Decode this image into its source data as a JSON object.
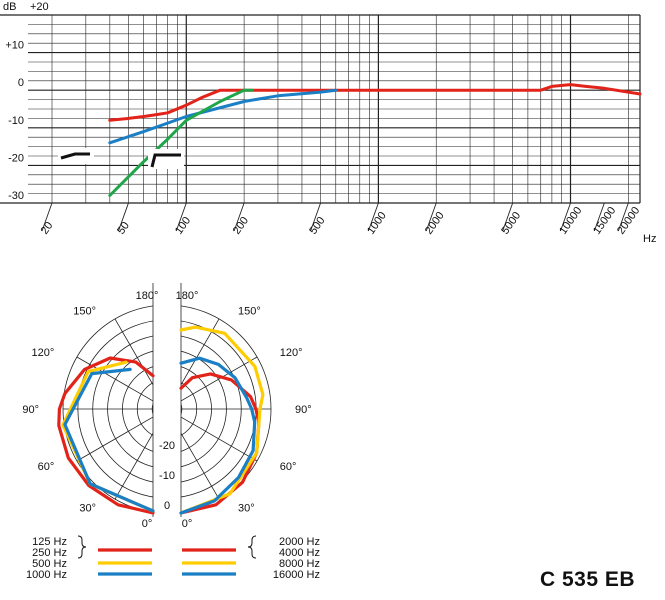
{
  "model_name": "C 535 EB",
  "colors": {
    "red": "#e2231a",
    "yellow": "#ffcc00",
    "blue": "#1a7fc4",
    "green": "#1fa64a",
    "grid": "#222222"
  },
  "chart_data": [
    {
      "type": "line",
      "title": "",
      "ylabel": "dB",
      "xlabel": "Hz",
      "x_scale": "log",
      "xlim": [
        15,
        23000
      ],
      "ylim": [
        -30,
        20
      ],
      "y_ticks": [
        {
          "value": 20,
          "label": "+20"
        },
        {
          "value": 10,
          "label": "+10"
        },
        {
          "value": 0,
          "label": "0"
        },
        {
          "value": -10,
          "label": "-10"
        },
        {
          "value": -20,
          "label": "-20"
        },
        {
          "value": -30,
          "label": "-30"
        }
      ],
      "x_ticks": [
        {
          "value": 20,
          "label": "20"
        },
        {
          "value": 50,
          "label": "50"
        },
        {
          "value": 100,
          "label": "100"
        },
        {
          "value": 200,
          "label": "200"
        },
        {
          "value": 500,
          "label": "500"
        },
        {
          "value": 1000,
          "label": "1000"
        },
        {
          "value": 2000,
          "label": "2000"
        },
        {
          "value": 5000,
          "label": "5000"
        },
        {
          "value": 10000,
          "label": "10000"
        },
        {
          "value": 15000,
          "label": "15000"
        },
        {
          "value": 20000,
          "label": "20000"
        }
      ],
      "grid": true,
      "series": [
        {
          "color": "red",
          "x": [
            40,
            50,
            60,
            70,
            80,
            100,
            120,
            150,
            200,
            500,
            1000,
            2000,
            5000,
            7000,
            8000,
            10000,
            12000,
            15000,
            20000,
            23000
          ],
          "y": [
            -8,
            -7.5,
            -7,
            -6.5,
            -6,
            -4,
            -2,
            0,
            0,
            0,
            0,
            0,
            0,
            0,
            1,
            1.5,
            1,
            0.5,
            -0.5,
            -1
          ]
        },
        {
          "color": "blue",
          "x": [
            40,
            60,
            100,
            200,
            300,
            500,
            600
          ],
          "y": [
            -14,
            -11,
            -7,
            -3,
            -1.5,
            -0.5,
            0
          ]
        },
        {
          "color": "green",
          "x": [
            40,
            60,
            80,
            100,
            150,
            200,
            220
          ],
          "y": [
            -28,
            -19,
            -13,
            -8,
            -3,
            0,
            0
          ]
        }
      ],
      "filter_switch_icons": [
        "low-cut-switch",
        "flat-switch"
      ]
    },
    {
      "type": "polar",
      "title": "",
      "angle_labels": [
        "180°",
        "150°",
        "120°",
        "90°",
        "60°",
        "30°",
        "0°"
      ],
      "radial_labels": [
        "-20",
        "-10",
        "0"
      ],
      "rlim": [
        -25,
        0
      ],
      "legend_left": [
        {
          "label": "125 Hz",
          "color": "red",
          "grouped": true
        },
        {
          "label": "250 Hz",
          "color": "red",
          "grouped": true
        },
        {
          "label": "500 Hz",
          "color": "yellow"
        },
        {
          "label": "1000 Hz",
          "color": "blue"
        }
      ],
      "legend_right": [
        {
          "label": "2000 Hz",
          "color": "red",
          "grouped": true
        },
        {
          "label": "4000 Hz",
          "color": "red",
          "grouped": true
        },
        {
          "label": "8000 Hz",
          "color": "yellow"
        },
        {
          "label": "16000 Hz",
          "color": "blue"
        }
      ],
      "left_half": [
        {
          "color": "red",
          "angles": [
            0,
            20,
            40,
            60,
            80,
            90,
            100,
            120,
            140,
            160,
            180
          ],
          "db": [
            0,
            -0.5,
            -1,
            -1.5,
            -2,
            -2.5,
            -3.5,
            -6,
            -9,
            -13,
            -17
          ]
        },
        {
          "color": "yellow",
          "angles": [
            0,
            40,
            80,
            120,
            150
          ],
          "db": [
            -0.5,
            -1.5,
            -3,
            -7,
            -12
          ]
        },
        {
          "color": "blue",
          "angles": [
            0,
            40,
            80,
            120,
            150
          ],
          "db": [
            -0.5,
            -1.5,
            -3.5,
            -8,
            -14
          ]
        }
      ],
      "right_half": [
        {
          "color": "red",
          "angles": [
            0,
            20,
            40,
            60,
            80,
            90,
            100,
            120,
            140,
            160,
            180
          ],
          "db": [
            0,
            -0.5,
            -2,
            -4,
            -6,
            -7,
            -8,
            -11,
            -14,
            -17,
            -20
          ]
        },
        {
          "color": "yellow",
          "angles": [
            0,
            30,
            60,
            90,
            100,
            120,
            150,
            170,
            180
          ],
          "db": [
            0,
            -1.5,
            -4,
            -6,
            -5,
            -4.5,
            -4,
            -5,
            -6
          ]
        },
        {
          "color": "blue",
          "angles": [
            0,
            20,
            40,
            60,
            80,
            90,
            100,
            120,
            140,
            160,
            180
          ],
          "db": [
            0,
            -1.5,
            -3.5,
            -5,
            -7,
            -8,
            -9,
            -10,
            -11,
            -12,
            -14
          ]
        }
      ]
    }
  ]
}
